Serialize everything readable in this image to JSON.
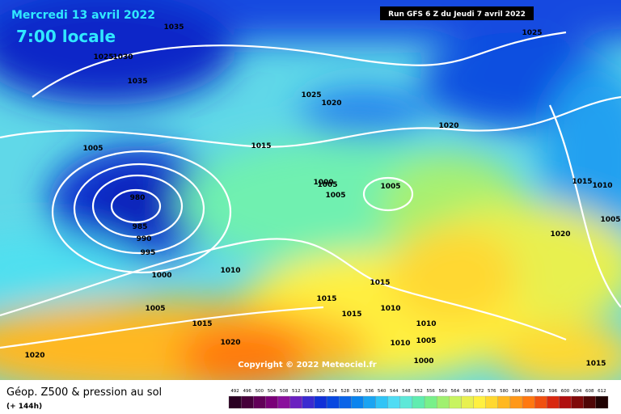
{
  "header": {
    "date": "Mercredi 13 avril 2022",
    "time": "7:00 locale",
    "run": "Run GFS 6 Z du Jeudi 7 avril 2022"
  },
  "copyright": "Copyright © 2022 Meteociel.fr",
  "footer": {
    "title": "Géop. Z500 & pression au sol",
    "subtitle": "(+ 144h)"
  },
  "legend": {
    "levels": [
      "492",
      "496",
      "500",
      "504",
      "508",
      "512",
      "516",
      "520",
      "524",
      "528",
      "532",
      "536",
      "540",
      "544",
      "548",
      "552",
      "556",
      "560",
      "564",
      "568",
      "572",
      "576",
      "580",
      "584",
      "588",
      "592",
      "596",
      "600",
      "604",
      "608",
      "612"
    ],
    "colors": [
      "#2a0022",
      "#46003a",
      "#620058",
      "#7a0078",
      "#8a109c",
      "#6a20c0",
      "#3a2ad0",
      "#1030d8",
      "#0848e0",
      "#0a64e8",
      "#0a84ee",
      "#1aa4f2",
      "#30c4f6",
      "#50dcf4",
      "#5ee8d8",
      "#60ecb0",
      "#78f08a",
      "#a0f070",
      "#c8f460",
      "#e8f050",
      "#fff040",
      "#ffd830",
      "#ffb820",
      "#ff9818",
      "#ff7810",
      "#f05010",
      "#d82810",
      "#b01010",
      "#800a0a",
      "#500606",
      "#200202"
    ]
  },
  "isobar_labels": [
    "1035",
    "1025",
    "1025",
    "1030",
    "1035",
    "1025",
    "1020",
    "1020",
    "1015",
    "1005",
    "1000",
    "1005",
    "1005",
    "1005",
    "980",
    "985",
    "990",
    "995",
    "1000",
    "1010",
    "1015",
    "1010",
    "1005",
    "1020",
    "1015",
    "1015",
    "1015",
    "1010",
    "1005",
    "1015",
    "1020",
    "1010",
    "1005",
    "1010",
    "1000",
    "1020",
    "1015"
  ]
}
